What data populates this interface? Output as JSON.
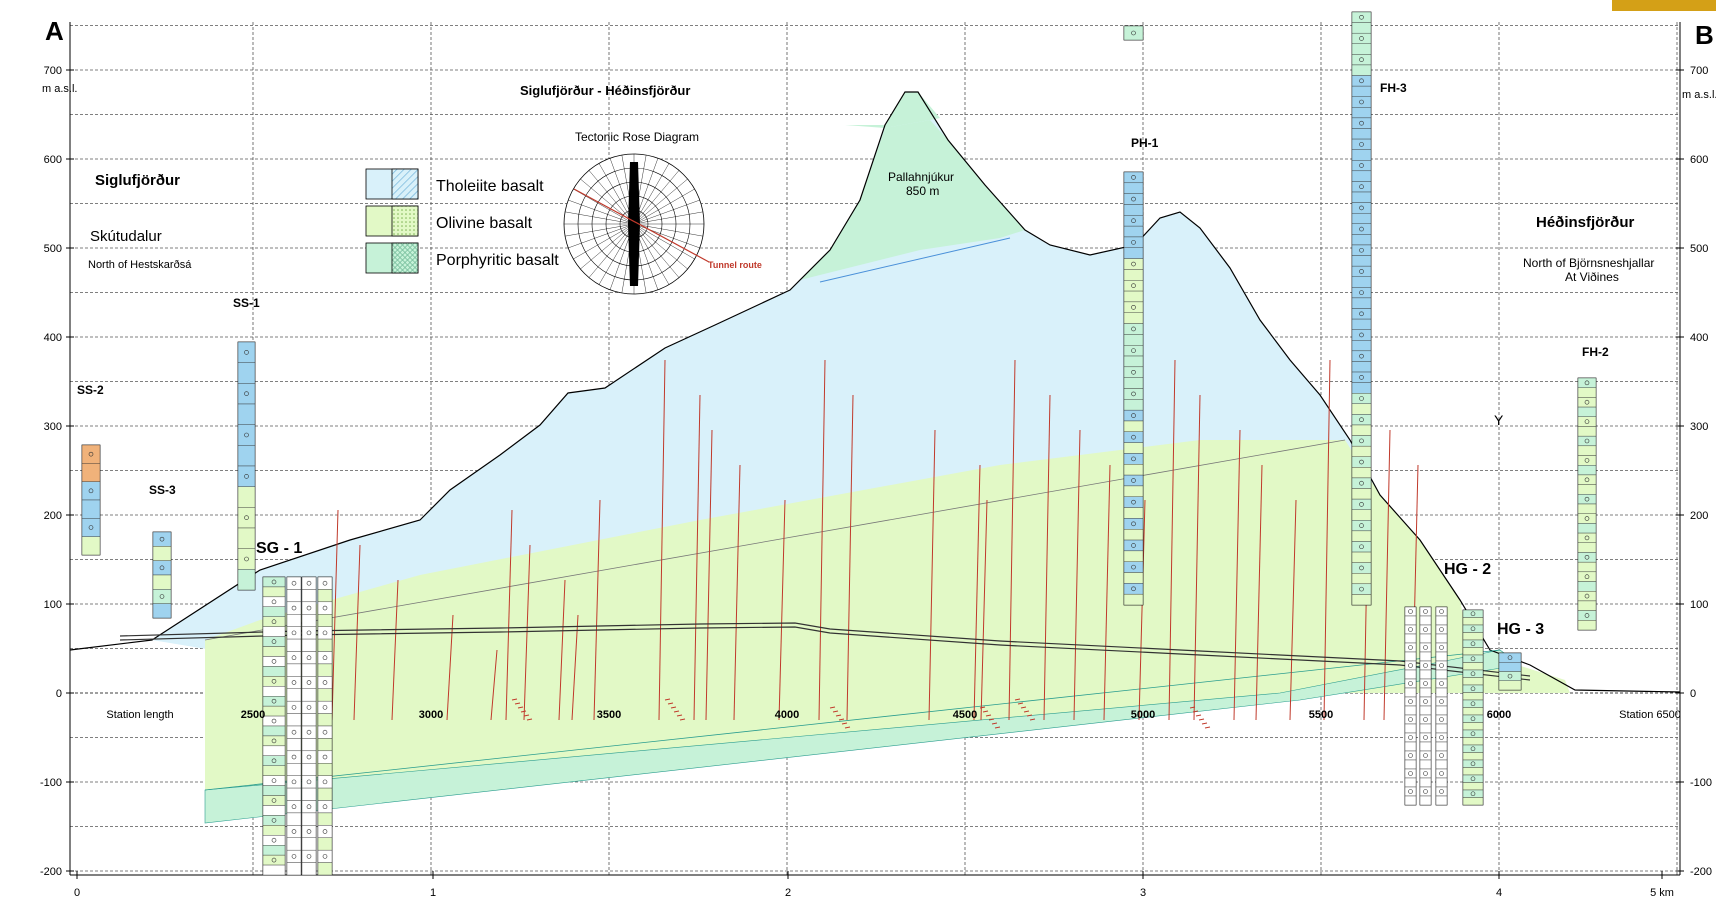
{
  "corners": {
    "left": "A",
    "right": "B"
  },
  "title": "Siglufjörður - Héðinsfjörður",
  "rose": {
    "title": "Tectonic Rose Diagram",
    "tunnel_label": "Tunnel route"
  },
  "legend": [
    {
      "label": "Tholeiite basalt",
      "color": "#d9f1fa",
      "hatch": "#79b8dc"
    },
    {
      "label": "Olivine basalt",
      "color": "#e2f9c6",
      "hatch": "#9ccc6e"
    },
    {
      "label": "Porphyritic basalt",
      "color": "#c6f2d8",
      "hatch": "#6fb896"
    }
  ],
  "left_place": {
    "name": "Siglufjörður",
    "valley": "Skútudalur",
    "note": "North of Hestskarðsá"
  },
  "right_place": {
    "name": "Héðinsfjörður",
    "note1": "North of Björnsneshjallar",
    "note2": "At Viðines"
  },
  "peak": {
    "name": "Pallahnjúkur",
    "elev": "850 m"
  },
  "elevation_unit": "m a.s.l.",
  "y_ticks": [
    "700",
    "600",
    "500",
    "400",
    "300",
    "200",
    "100",
    "0",
    "-100",
    "-200"
  ],
  "station_labels": [
    "Station length",
    "2500",
    "3000",
    "3500",
    "4000",
    "4500",
    "5000",
    "5500",
    "6000",
    "Station 6500"
  ],
  "km_labels": [
    "0",
    "1",
    "2",
    "3",
    "4",
    "5 km"
  ],
  "boreholes": [
    "SS-2",
    "SS-3",
    "SS-1",
    "SG - 1",
    "PH-1",
    "FH-3",
    "HG - 2",
    "HG - 3",
    "FH-2"
  ],
  "marker_y": "Y",
  "colors": {
    "tholeiite": "#d9f1fa",
    "olivine": "#e2f9c6",
    "porphyritic": "#c6f2d8",
    "fault": "#c0392b",
    "tunnel": "#333333"
  }
}
